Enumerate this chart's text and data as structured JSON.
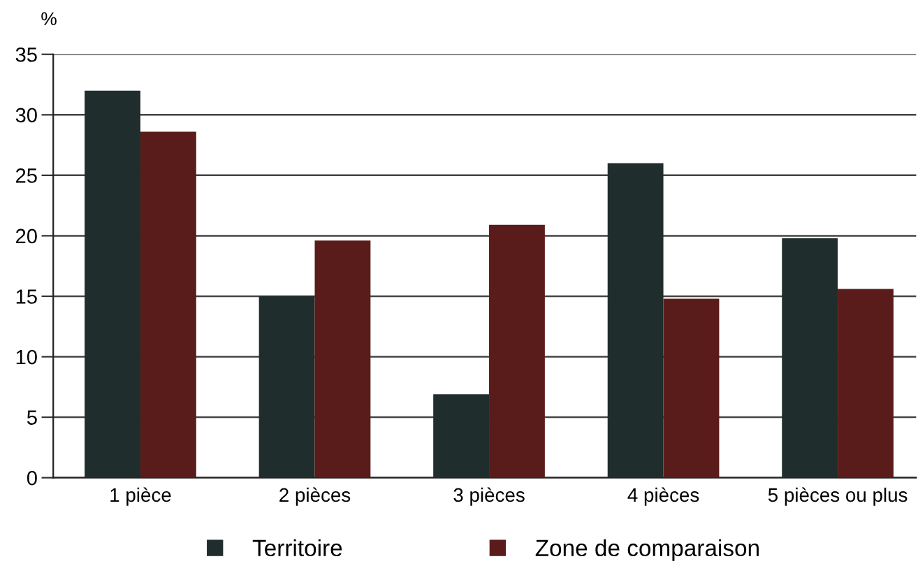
{
  "chart_data": {
    "type": "bar",
    "categories": [
      "1 pièce",
      "2 pièces",
      "3 pièces",
      "4 pièces",
      "5 pièces ou plus"
    ],
    "series": [
      {
        "name": "Territoire",
        "color": "#1f2d2d",
        "values": [
          32,
          15,
          6.9,
          26,
          19.8
        ]
      },
      {
        "name": "Zone de comparaison",
        "color": "#5a1c1a",
        "values": [
          28.6,
          19.6,
          20.9,
          14.8,
          15.6
        ]
      }
    ],
    "ylabel": "%",
    "ylim": [
      0,
      35
    ],
    "yticks": [
      0,
      5,
      10,
      15,
      20,
      25,
      30,
      35
    ],
    "grid": "y",
    "legend": "bottom"
  }
}
